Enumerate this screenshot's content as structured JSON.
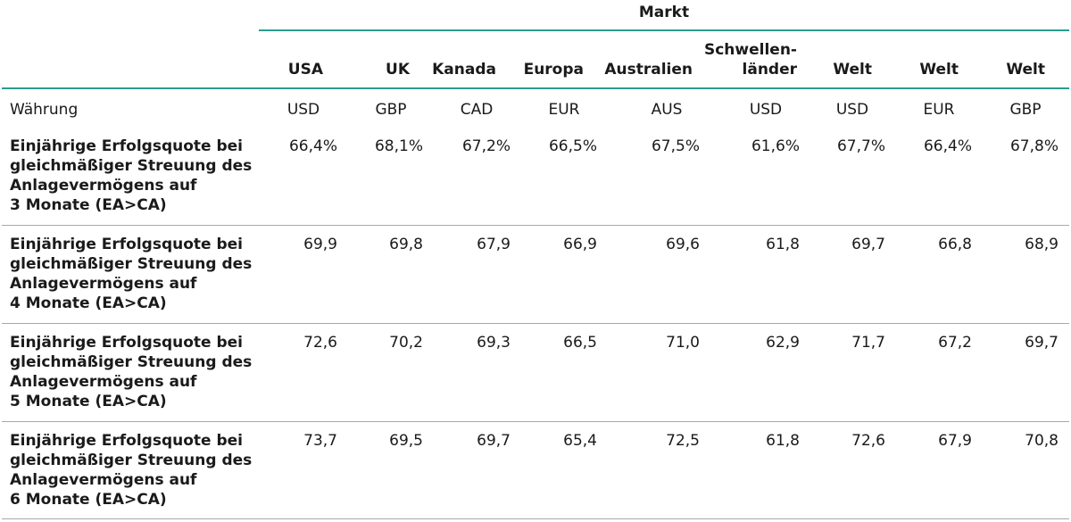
{
  "market_title": "Markt",
  "columns": [
    {
      "market": "USA",
      "currency": "USD"
    },
    {
      "market": "UK",
      "currency": "GBP"
    },
    {
      "market": "Kanada",
      "currency": "CAD"
    },
    {
      "market": "Europa",
      "currency": "EUR"
    },
    {
      "market": "Australien",
      "currency": "AUS"
    },
    {
      "market": "Schwellen-\nländer",
      "currency": "USD"
    },
    {
      "market": "Welt",
      "currency": "USD"
    },
    {
      "market": "Welt",
      "currency": "EUR"
    },
    {
      "market": "Welt",
      "currency": "GBP"
    }
  ],
  "currency_row_label": "Währung",
  "rows": [
    {
      "label": "Einjährige Erfolgsquote bei\ngleichmäßiger Streuung des\nAnlagevermögens auf\n3 Monate (EA>CA)",
      "values": [
        "66,4%",
        "68,1%",
        "67,2%",
        "66,5%",
        "67,5%",
        "61,6%",
        "67,7%",
        "66,4%",
        "67,8%"
      ]
    },
    {
      "label": "Einjährige Erfolgsquote bei\ngleichmäßiger Streuung des\nAnlagevermögens auf\n4 Monate (EA>CA)",
      "values": [
        "69,9",
        "69,8",
        "67,9",
        "66,9",
        "69,6",
        "61,8",
        "69,7",
        "66,8",
        "68,9"
      ]
    },
    {
      "label": "Einjährige Erfolgsquote bei\ngleichmäßiger Streuung des\nAnlagevermögens auf\n5 Monate (EA>CA)",
      "values": [
        "72,6",
        "70,2",
        "69,3",
        "66,5",
        "71,0",
        "62,9",
        "71,7",
        "67,2",
        "69,7"
      ]
    },
    {
      "label": "Einjährige Erfolgsquote bei\ngleichmäßiger Streuung des\nAnlagevermögens auf\n6 Monate (EA>CA)",
      "values": [
        "73,7",
        "69,5",
        "69,7",
        "65,4",
        "72,5",
        "61,8",
        "72,6",
        "67,9",
        "70,8"
      ]
    }
  ],
  "colors": {
    "accent_rule": "#2a9d8f",
    "separator": "#a8a8a8",
    "text": "#1a1a1a"
  }
}
